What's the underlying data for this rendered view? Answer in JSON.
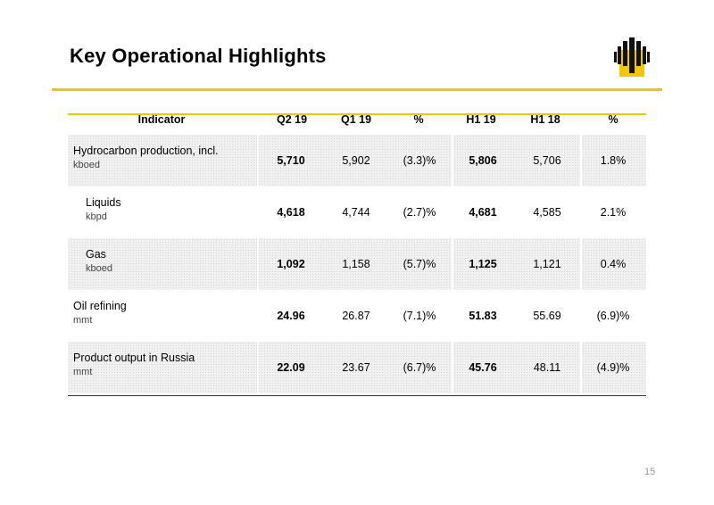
{
  "title": "Key Operational Highlights",
  "colors": {
    "accent": "#f2c600",
    "logo_black": "#111111"
  },
  "logo": {
    "icon": "company-logo-icon"
  },
  "table": {
    "headers": [
      "Indicator",
      "Q2 19",
      "Q1 19",
      "%",
      "H1 19",
      "H1 18",
      "%"
    ],
    "rows": [
      {
        "label": "Hydrocarbon production, incl.",
        "unit": "kboed",
        "q2_19": "5,710",
        "q1_19": "5,902",
        "qoq": "(3.3)%",
        "h1_19": "5,806",
        "h1_18": "5,706",
        "yoy": "1.8%"
      },
      {
        "label": "Liquids",
        "unit": "kbpd",
        "q2_19": "4,618",
        "q1_19": "4,744",
        "qoq": "(2.7)%",
        "h1_19": "4,681",
        "h1_18": "4,585",
        "yoy": "2.1%"
      },
      {
        "label": "Gas",
        "unit": "kboed",
        "q2_19": "1,092",
        "q1_19": "1,158",
        "qoq": "(5.7)%",
        "h1_19": "1,125",
        "h1_18": "1,121",
        "yoy": "0.4%"
      },
      {
        "label": "Oil refining",
        "unit": "mmt",
        "q2_19": "24.96",
        "q1_19": "26.87",
        "qoq": "(7.1)%",
        "h1_19": "51.83",
        "h1_18": "55.69",
        "yoy": "(6.9)%"
      },
      {
        "label": "Product output in Russia",
        "unit": "mmt",
        "q2_19": "22.09",
        "q1_19": "23.67",
        "qoq": "(6.7)%",
        "h1_19": "45.76",
        "h1_18": "48.11",
        "yoy": "(4.9)%"
      }
    ]
  },
  "page_number": "15"
}
